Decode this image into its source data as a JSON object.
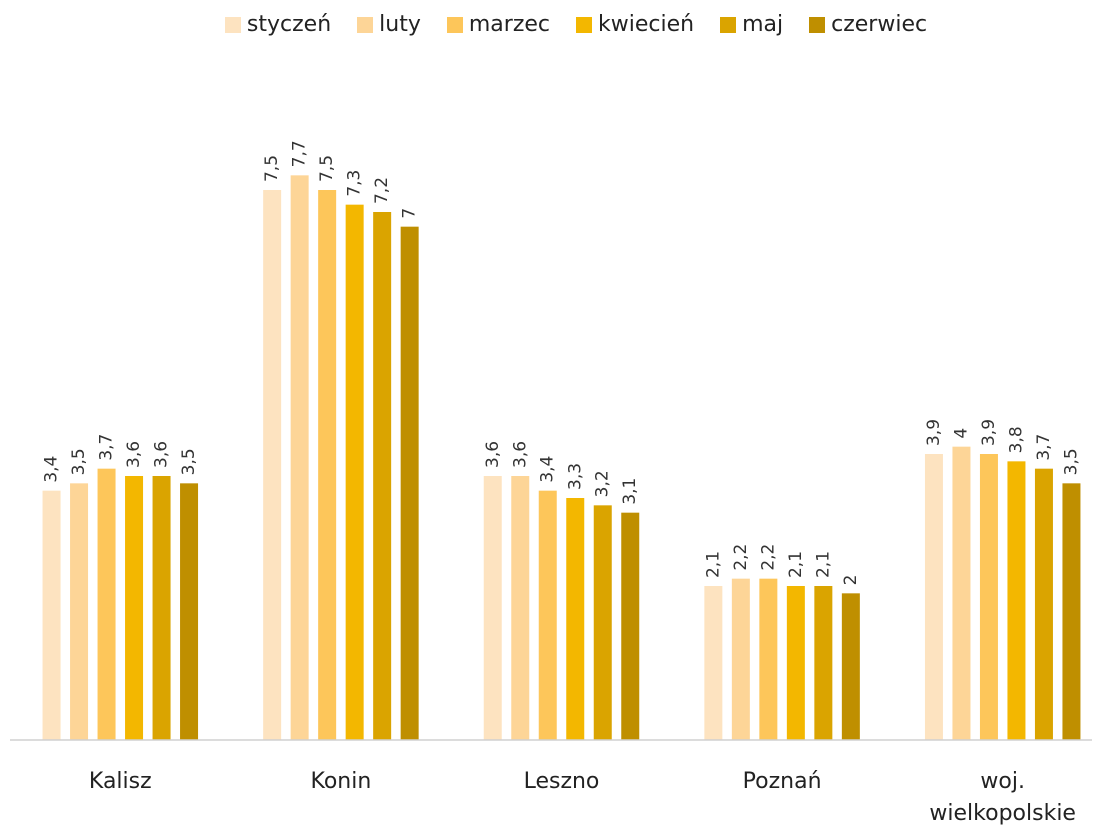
{
  "chart_data": {
    "type": "bar",
    "categories": [
      "Kalisz",
      "Konin",
      "Leszno",
      "Poznań",
      "woj. wielkopolskie"
    ],
    "series": [
      {
        "name": "styczeń",
        "color": "#fde3c0",
        "values": [
          3.4,
          7.5,
          3.6,
          2.1,
          3.9
        ],
        "value_labels": [
          "3,4",
          "7,5",
          "3,6",
          "2,1",
          "3,9"
        ]
      },
      {
        "name": "luty",
        "color": "#fdd597",
        "values": [
          3.5,
          7.7,
          3.6,
          2.2,
          4
        ],
        "value_labels": [
          "3,5",
          "7,7",
          "3,6",
          "2,2",
          "4"
        ]
      },
      {
        "name": "marzec",
        "color": "#fdc65a",
        "values": [
          3.7,
          7.5,
          3.4,
          2.2,
          3.9
        ],
        "value_labels": [
          "3,7",
          "7,5",
          "3,4",
          "2,2",
          "3,9"
        ]
      },
      {
        "name": "kwiecień",
        "color": "#f3b700",
        "values": [
          3.6,
          7.3,
          3.3,
          2.1,
          3.8
        ],
        "value_labels": [
          "3,6",
          "7,3",
          "3,3",
          "2,1",
          "3,8"
        ]
      },
      {
        "name": "maj",
        "color": "#daa400",
        "values": [
          3.6,
          7.2,
          3.2,
          2.1,
          3.7
        ],
        "value_labels": [
          "3,6",
          "7,2",
          "3,2",
          "2,1",
          "3,7"
        ]
      },
      {
        "name": "czerwiec",
        "color": "#bf8f00",
        "values": [
          3.5,
          7,
          3.1,
          2,
          3.5
        ],
        "value_labels": [
          "3,5",
          "7",
          "3,1",
          "2",
          "3,5"
        ]
      }
    ],
    "ylim": [
      0,
      9
    ],
    "legend": "top"
  }
}
